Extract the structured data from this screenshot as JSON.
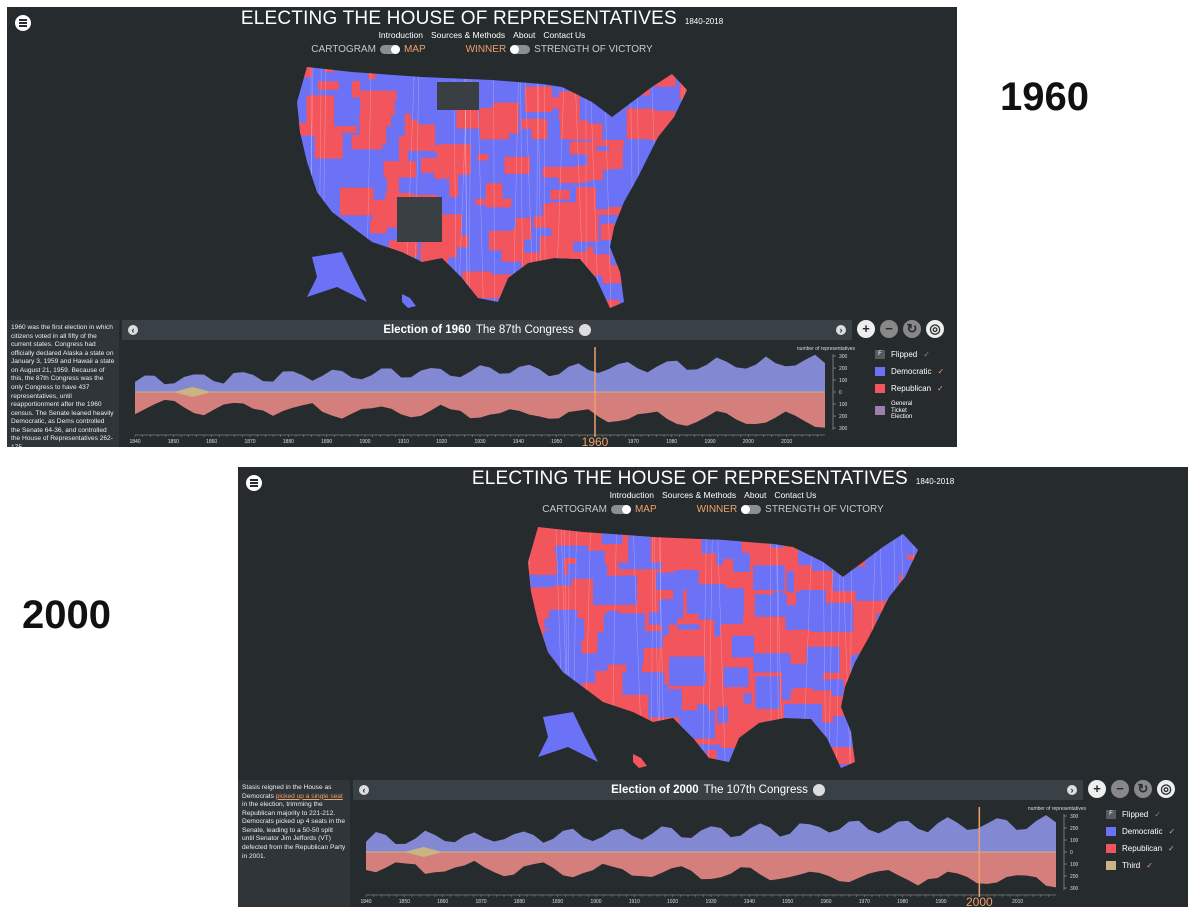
{
  "labels": [
    "1960",
    "2000"
  ],
  "panels": [
    {
      "header": {
        "title": "ELECTING THE HOUSE OF REPRESENTATIVES",
        "years": "1840-2018"
      },
      "nav": [
        "Introduction",
        "Sources & Methods",
        "About",
        "Contact Us"
      ],
      "toggles": [
        "CARTOGRAM",
        "MAP",
        "WINNER",
        "STRENGTH OF VICTORY"
      ],
      "description": [
        {
          "text": "1960 was the first election in which citizens voted in all fifty of the current states. Congress had officially declared Alaska a state on January 3, 1959 and Hawaii a state on August 21, 1959. Because of this, the 87th Congress was the only Congress to have 437 representatives, until reapportionment after the 1960 census. The Senate leaned heavily Democratic, as Dems controlled the Senate 64-36, and controlled the House of Representatives 262-175."
        }
      ],
      "timeline": {
        "election": "Election of 1960",
        "congress": "The 87th Congress",
        "axis_title": "number of representatives",
        "yticks": [
          "300",
          "200",
          "100",
          "0",
          "100",
          "200",
          "300"
        ],
        "xticks": [
          "1840",
          "1850",
          "1860",
          "1870",
          "1880",
          "1890",
          "1900",
          "1910",
          "1920",
          "1930",
          "1940",
          "1950",
          "1960",
          "1970",
          "1980",
          "1990",
          "2000",
          "2010"
        ],
        "selected_year": "1960"
      },
      "legend": [
        {
          "label": "Flipped",
          "icon": "F",
          "check": "✓",
          "color": "#555b60"
        },
        {
          "label": "Democratic",
          "check": "✓",
          "color": "#6b72f5"
        },
        {
          "label": "Republican",
          "check": "✓",
          "color": "#f2555c"
        },
        {
          "label": "General Ticket Election",
          "color": "#9a7fb0"
        }
      ],
      "map_base": "#6b72f5",
      "map_patch": "#f2555c"
    },
    {
      "header": {
        "title": "ELECTING THE HOUSE OF REPRESENTATIVES",
        "years": "1840-2018"
      },
      "nav": [
        "Introduction",
        "Sources & Methods",
        "About",
        "Contact Us"
      ],
      "toggles": [
        "CARTOGRAM",
        "MAP",
        "WINNER",
        "STRENGTH OF VICTORY"
      ],
      "description": [
        {
          "text": "Stasis reigned in the House as Democrats "
        },
        {
          "text": "picked up a single seat",
          "link": true
        },
        {
          "text": " in the election, trimming the Republican majority to 221-212. Democrats picked up 4 seats in the Senate, leading to a 50-50 split until Senator Jim Jeffords (VT) defected from the Republican Party in 2001."
        }
      ],
      "timeline": {
        "election": "Election of 2000",
        "congress": "The 107th Congress",
        "axis_title": "number of representatives",
        "yticks": [
          "300",
          "200",
          "100",
          "0",
          "100",
          "200",
          "300"
        ],
        "xticks": [
          "1840",
          "1850",
          "1860",
          "1870",
          "1880",
          "1890",
          "1900",
          "1910",
          "1920",
          "1930",
          "1940",
          "1950",
          "1960",
          "1970",
          "1980",
          "1990",
          "2000",
          "2010"
        ],
        "selected_year": "2000"
      },
      "legend": [
        {
          "label": "Flipped",
          "icon": "F",
          "check": "✓",
          "color": "#555b60"
        },
        {
          "label": "Democratic",
          "check": "✓",
          "color": "#6b72f5"
        },
        {
          "label": "Republican",
          "check": "✓",
          "color": "#f2555c"
        },
        {
          "label": "Third",
          "check": "✓",
          "color": "#c9b583"
        }
      ],
      "map_base": "#f2555c",
      "map_patch": "#6b72f5"
    }
  ]
}
